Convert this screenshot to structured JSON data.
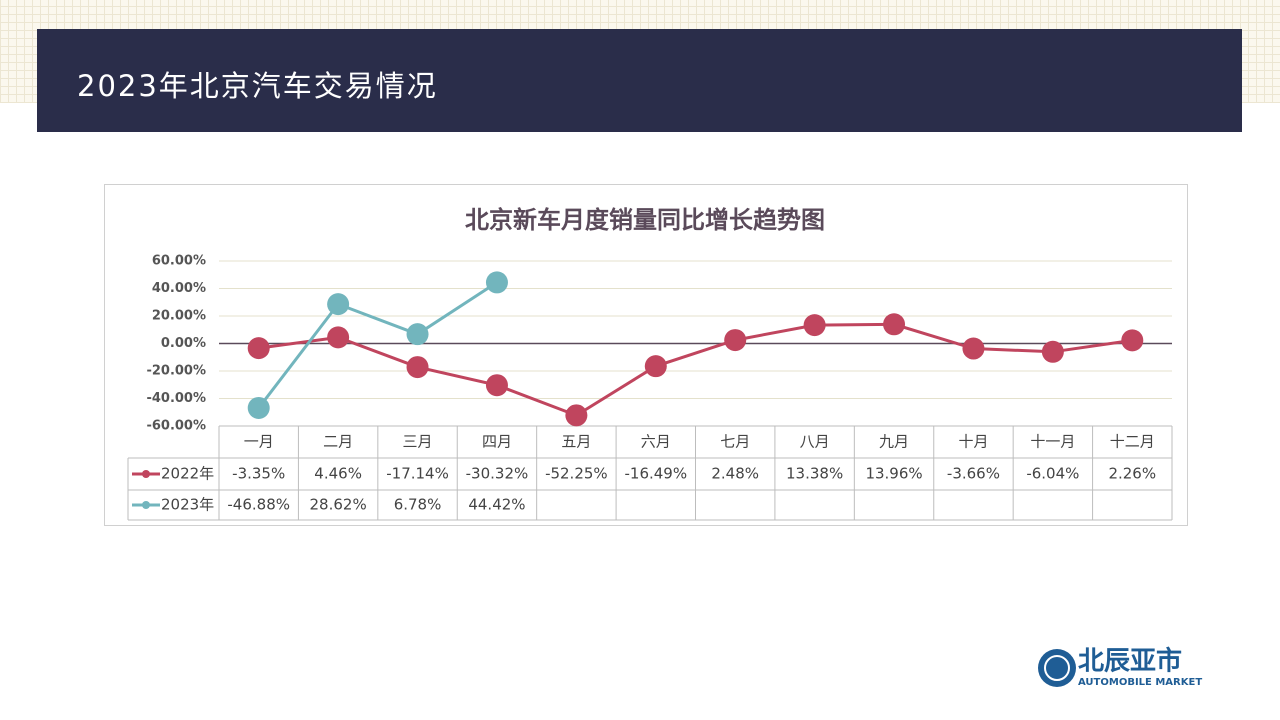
{
  "header": {
    "title": "2023年北京汽车交易情况"
  },
  "logo": {
    "name": "北辰亚市",
    "subtitle": "AUTOMOBILE MARKET"
  },
  "chart_data": {
    "type": "line",
    "title": "北京新车月度销量同比增长趋势图",
    "categories": [
      "一月",
      "二月",
      "三月",
      "四月",
      "五月",
      "六月",
      "七月",
      "八月",
      "九月",
      "十月",
      "十一月",
      "十二月"
    ],
    "series": [
      {
        "name": "2022年",
        "color": "#c0455e",
        "values": [
          -3.35,
          4.46,
          -17.14,
          -30.32,
          -52.25,
          -16.49,
          2.48,
          13.38,
          13.96,
          -3.66,
          -6.04,
          2.26
        ],
        "value_labels": [
          "-3.35%",
          "4.46%",
          "-17.14%",
          "-30.32%",
          "-52.25%",
          "-16.49%",
          "2.48%",
          "13.38%",
          "13.96%",
          "-3.66%",
          "-6.04%",
          "2.26%"
        ]
      },
      {
        "name": "2023年",
        "color": "#72b5bd",
        "values": [
          -46.88,
          28.62,
          6.78,
          44.42,
          null,
          null,
          null,
          null,
          null,
          null,
          null,
          null
        ],
        "value_labels": [
          "-46.88%",
          "28.62%",
          "6.78%",
          "44.42%",
          null,
          null,
          null,
          null,
          null,
          null,
          null,
          null
        ]
      }
    ],
    "ylim": [
      -60,
      60
    ],
    "yticks": [
      {
        "value": -60,
        "label": "-60.00%"
      },
      {
        "value": -40,
        "label": "-40.00%"
      },
      {
        "value": -20,
        "label": "-20.00%"
      },
      {
        "value": 0,
        "label": "0.00%"
      },
      {
        "value": 20,
        "label": "20.00%"
      },
      {
        "value": 40,
        "label": "40.00%"
      },
      {
        "value": 60,
        "label": "60.00%"
      }
    ],
    "grid": true,
    "data_table": true
  }
}
